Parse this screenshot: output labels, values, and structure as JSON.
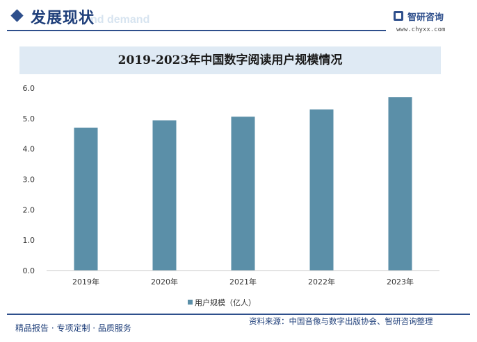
{
  "header": {
    "title": "发展现状",
    "ghost_text": "nd demand",
    "logo_name": "智研咨询",
    "logo_url": "www.chyxx.com"
  },
  "chart_data": {
    "type": "bar",
    "title": "2019-2023年中国数字阅读用户规模情况",
    "categories": [
      "2019年",
      "2020年",
      "2021年",
      "2022年",
      "2023年"
    ],
    "series": [
      {
        "name": "用户规模（亿人）",
        "values": [
          4.7,
          4.94,
          5.06,
          5.3,
          5.7
        ]
      }
    ],
    "yticks": [
      "0.0",
      "1.0",
      "2.0",
      "3.0",
      "4.0",
      "5.0",
      "6.0"
    ],
    "ylim": [
      0,
      6
    ],
    "grid": false,
    "legend": "bottom",
    "colors": {
      "bar": "#5b8fa8",
      "axis": "#c8c8c8"
    }
  },
  "footer": {
    "left": "精品报告 · 专项定制 · 品质服务",
    "source": "资料来源：中国音像与数字出版协会、智研咨询整理"
  }
}
